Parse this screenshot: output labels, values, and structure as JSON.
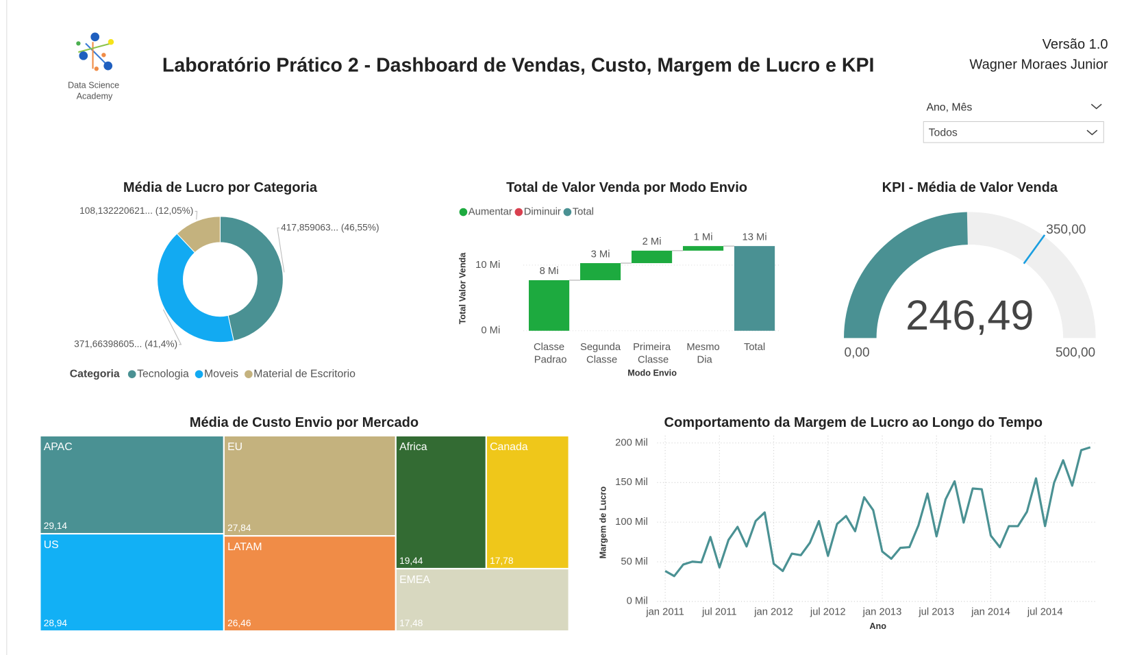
{
  "header": {
    "logo_text": "Data Science Academy",
    "title": "Laboratório Prático 2 - Dashboard de Vendas, Custo, Margem de Lucro e KPI",
    "version": "Versão 1.0",
    "author": "Wagner Moraes Junior"
  },
  "filter": {
    "label": "Ano, Mês",
    "value": "Todos"
  },
  "chart_data": [
    {
      "type": "pie",
      "donut": true,
      "title": "Média de Lucro por Categoria",
      "legend_title": "Categoria",
      "legend": "bottom",
      "categories": [
        "Tecnologia",
        "Moveis",
        "Material de Escritorio"
      ],
      "values": [
        417.859063,
        371.66398605,
        108.132220621
      ],
      "value_labels": [
        "417,859063... (46,55%)",
        "371,66398605... (41,4%)",
        "108,132220621... (12,05%)"
      ],
      "colors": [
        "#4a9193",
        "#12aaf2",
        "#c4b27e"
      ]
    },
    {
      "type": "waterfall",
      "title": "Total de Valor Venda por Modo Envio",
      "x_label": "Modo Envio",
      "y_label": "Total Valor Venda",
      "series": [
        {
          "name": "Aumentar",
          "color": "#1daa3f"
        },
        {
          "name": "Diminuir",
          "color": "#d9404f"
        },
        {
          "name": "Total",
          "color": "#4a9193"
        }
      ],
      "categories": [
        "Classe Padrao",
        "Segunda Classe",
        "Primeira Classe",
        "Mesmo Dia",
        "Total"
      ],
      "values": [
        7.7,
        2.6,
        1.9,
        0.7,
        12.9
      ],
      "value_labels": [
        "8 Mi",
        "3 Mi",
        "2 Mi",
        "1 Mi",
        "13 Mi"
      ],
      "ylim": [
        0,
        14
      ],
      "yticks": [
        {
          "value": 0,
          "label": "0 Mi"
        },
        {
          "value": 10,
          "label": "10 Mi"
        }
      ],
      "grid": true
    },
    {
      "type": "gauge",
      "title": "KPI - Média de Valor Venda",
      "value": 246.49,
      "value_label": "246,49",
      "range": [
        {
          "value": 0,
          "label": "0,00"
        },
        {
          "value": 500,
          "label": "500,00"
        }
      ],
      "target": 350,
      "target_label": "350,00",
      "color": "#4a9193",
      "track_color": "#efefef",
      "target_color": "#1a9ee0"
    },
    {
      "type": "treemap",
      "title": "Média de Custo Envio por Mercado",
      "categories": [
        "APAC",
        "US",
        "EU",
        "LATAM",
        "Africa",
        "Canada",
        "EMEA"
      ],
      "values": [
        29.14,
        28.94,
        27.84,
        26.46,
        19.44,
        17.78,
        17.48
      ],
      "value_labels": [
        "29,14",
        "28,94",
        "27,84",
        "26,46",
        "19,44",
        "17,78",
        "17,48"
      ],
      "colors": [
        "#4a9193",
        "#12b0f5",
        "#c4b27e",
        "#f08c47",
        "#336b33",
        "#efc71a",
        "#d8d8c0"
      ]
    },
    {
      "type": "line",
      "title": "Comportamento da Margem de Lucro ao Longo do Tempo",
      "x_label": "Ano",
      "y_label": "Margem de Lucro",
      "x": [
        "2011-01",
        "2011-02",
        "2011-03",
        "2011-04",
        "2011-05",
        "2011-06",
        "2011-07",
        "2011-08",
        "2011-09",
        "2011-10",
        "2011-11",
        "2011-12",
        "2012-01",
        "2012-02",
        "2012-03",
        "2012-04",
        "2012-05",
        "2012-06",
        "2012-07",
        "2012-08",
        "2012-09",
        "2012-10",
        "2012-11",
        "2012-12",
        "2013-01",
        "2013-02",
        "2013-03",
        "2013-04",
        "2013-05",
        "2013-06",
        "2013-07",
        "2013-08",
        "2013-09",
        "2013-10",
        "2013-11",
        "2013-12",
        "2014-01",
        "2014-02",
        "2014-03",
        "2014-04",
        "2014-05",
        "2014-06",
        "2014-07",
        "2014-08",
        "2014-09",
        "2014-10",
        "2014-11",
        "2014-12"
      ],
      "values": [
        38.4,
        32,
        46.6,
        50.2,
        49.3,
        81.3,
        42.9,
        77.6,
        94.1,
        69.4,
        101.4,
        112.3,
        47.5,
        38.4,
        60.3,
        58.4,
        74,
        101.4,
        57.5,
        97.7,
        107.8,
        88.6,
        131.5,
        115.1,
        63,
        53.9,
        67.6,
        68.5,
        95.9,
        136.1,
        82.2,
        128.8,
        151.6,
        99.5,
        142.5,
        141.6,
        83.1,
        68.5,
        95,
        95,
        113.2,
        155.3,
        95,
        149.8,
        178.1,
        146.1,
        190.9,
        194.5
      ],
      "color": "#4a9193",
      "ylim": [
        0,
        200
      ],
      "yticks": [
        {
          "value": 0,
          "label": "0 Mil"
        },
        {
          "value": 50,
          "label": "50 Mil"
        },
        {
          "value": 100,
          "label": "100 Mil"
        },
        {
          "value": 150,
          "label": "150 Mil"
        },
        {
          "value": 200,
          "label": "200 Mil"
        }
      ],
      "xticks": [
        {
          "value": "2011-01",
          "label": "jan 2011"
        },
        {
          "value": "2011-07",
          "label": "jul 2011"
        },
        {
          "value": "2012-01",
          "label": "jan 2012"
        },
        {
          "value": "2012-07",
          "label": "jul 2012"
        },
        {
          "value": "2013-01",
          "label": "jan 2013"
        },
        {
          "value": "2013-07",
          "label": "jul 2013"
        },
        {
          "value": "2014-01",
          "label": "jan 2014"
        },
        {
          "value": "2014-07",
          "label": "jul 2014"
        }
      ],
      "grid": true
    }
  ]
}
